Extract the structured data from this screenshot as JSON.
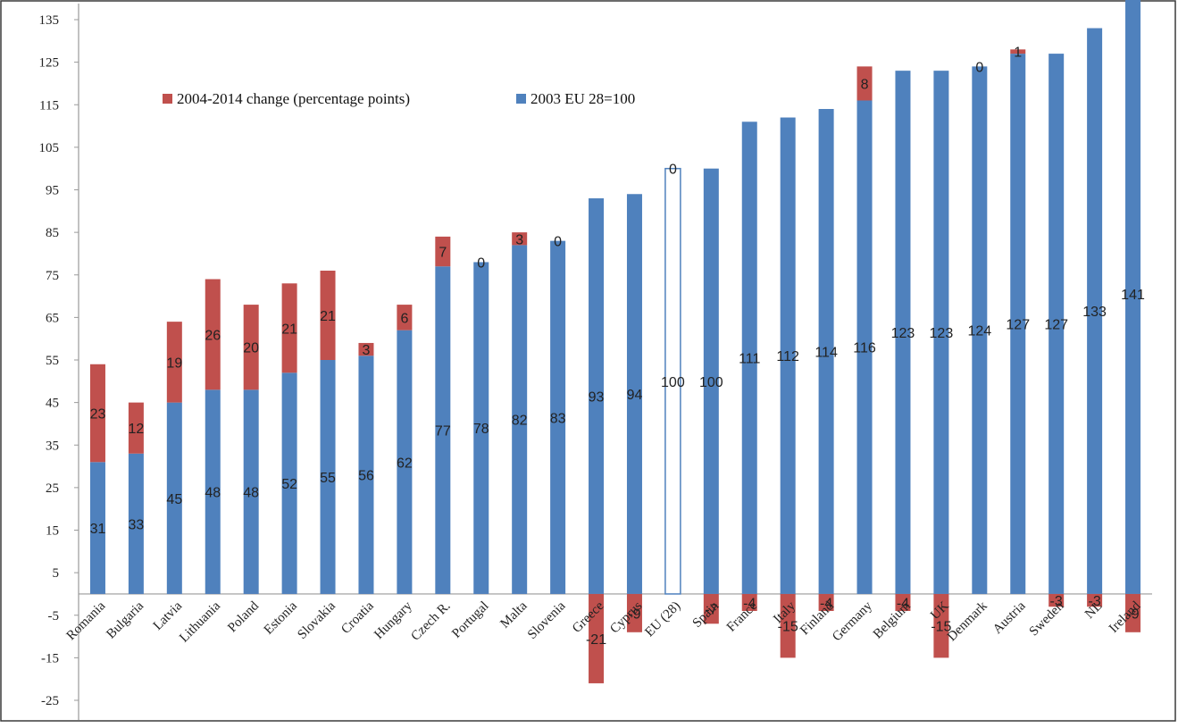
{
  "chart_data": {
    "type": "bar",
    "stacked": true,
    "categories": [
      "Romania",
      "Bulgaria",
      "Latvia",
      "Lithuania",
      "Poland",
      "Estonia",
      "Slovakia",
      "Croatia",
      "Hungary",
      "Czech R.",
      "Portugal",
      "Malta",
      "Slovenia",
      "Greece",
      "Cyprus",
      "EU (28)",
      "Spain",
      "France",
      "Italy",
      "Finland",
      "Germany",
      "Belgium",
      "UK",
      "Denmark",
      "Austria",
      "Sweden",
      "NL",
      "Ireland"
    ],
    "series": [
      {
        "name": "2003 EU 28=100",
        "color": "#4f81bd",
        "values": [
          31,
          33,
          45,
          48,
          48,
          52,
          55,
          56,
          62,
          77,
          78,
          82,
          83,
          93,
          94,
          100,
          100,
          111,
          112,
          114,
          116,
          123,
          123,
          124,
          127,
          127,
          133,
          141
        ],
        "labels": [
          "31",
          "33",
          "45",
          "48",
          "48",
          "52",
          "55",
          "56",
          "62",
          "77",
          "78",
          "82",
          "83",
          "93",
          "94",
          "100",
          "100",
          "111",
          "112",
          "114",
          "116",
          "123",
          "123",
          "124",
          "127",
          "127",
          "133",
          "141"
        ]
      },
      {
        "name": "2004-2014 change (percentage points)",
        "color": "#c0504d",
        "values": [
          23,
          12,
          19,
          26,
          20,
          21,
          21,
          3,
          6,
          7,
          0,
          3,
          0,
          -21,
          -9,
          0,
          -7,
          -4,
          -15,
          -4,
          8,
          -4,
          -15,
          0,
          1,
          -3,
          -3,
          -9
        ],
        "labels": [
          "23",
          "12",
          "19",
          "26",
          "20",
          "21",
          "21",
          "3",
          "6",
          "7",
          "0",
          "3",
          "0",
          "-21",
          "-9",
          "0",
          "-7",
          "-4",
          "-15",
          "-4",
          "8",
          "-4",
          "-15",
          "0",
          "1",
          "-3",
          "-3",
          "-9"
        ]
      }
    ],
    "highlight_category": "EU (28)",
    "highlight_style": "outline",
    "y_ticks": [
      "135",
      "125",
      "115",
      "105",
      "95",
      "85",
      "75",
      "65",
      "55",
      "45",
      "35",
      "25",
      "15",
      "5",
      "-5",
      "-15",
      "-25"
    ],
    "ylim": [
      -30,
      139
    ],
    "legend_placement": "top-left",
    "grid": false,
    "title": "",
    "xlabel": "",
    "ylabel": ""
  }
}
